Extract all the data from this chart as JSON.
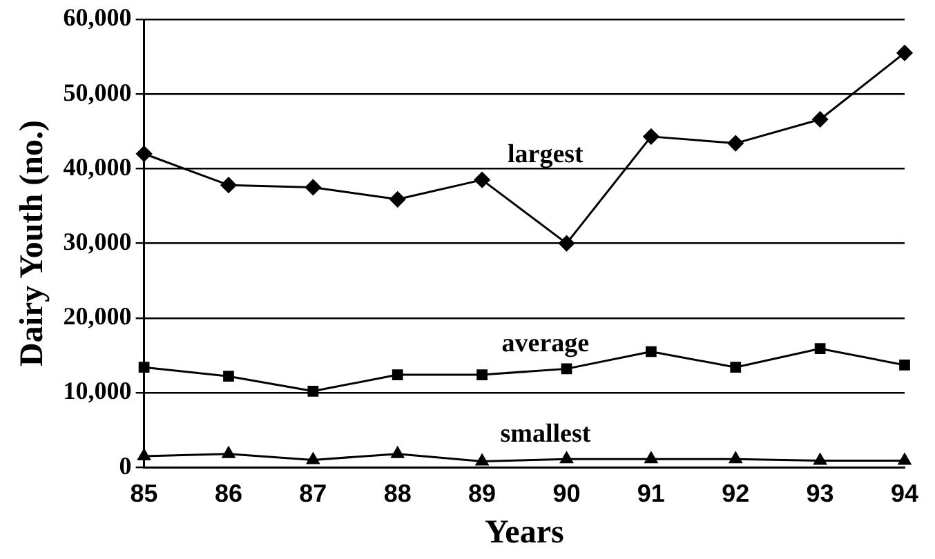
{
  "chart_data": {
    "type": "line",
    "xlabel": "Years",
    "ylabel": "Dairy Youth (no.)",
    "categories": [
      "85",
      "86",
      "87",
      "88",
      "89",
      "90",
      "91",
      "92",
      "93",
      "94"
    ],
    "series": [
      {
        "name": "largest",
        "color": "#000000",
        "marker": "diamond",
        "values": [
          42000,
          37800,
          37500,
          35900,
          38500,
          30000,
          44300,
          43400,
          46600,
          55500
        ]
      },
      {
        "name": "average",
        "color": "#000000",
        "marker": "square",
        "values": [
          13400,
          12200,
          10200,
          12400,
          12400,
          13200,
          15500,
          13400,
          15900,
          13700
        ]
      },
      {
        "name": "smallest",
        "color": "#000000",
        "marker": "triangle",
        "values": [
          1500,
          1800,
          1000,
          1800,
          800,
          1100,
          1100,
          1100,
          900,
          900
        ]
      }
    ],
    "ylim": [
      0,
      60000
    ],
    "yticks": [
      0,
      {
        "value": 10000,
        "label": "10,000"
      },
      {
        "value": 20000,
        "label": "20,000"
      },
      {
        "value": 30000,
        "label": "30,000"
      },
      {
        "value": 40000,
        "label": "40,000"
      },
      {
        "value": 50000,
        "label": "50,000"
      },
      {
        "value": 60000,
        "label": "60,000"
      }
    ],
    "grid": "y",
    "legend": false,
    "line_style": "solid"
  }
}
